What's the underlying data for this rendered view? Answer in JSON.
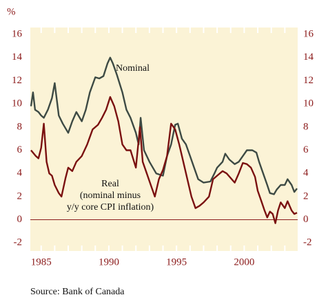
{
  "chart_data": {
    "type": "line",
    "y_unit": "%",
    "source": "Source: Bank of Canada",
    "annotations": [
      "Nominal",
      "Real",
      "(nominal minus",
      "y/y core CPI inflation)"
    ],
    "xlim": [
      1984.2,
      2003.95
    ],
    "xticks": [
      1985,
      1990,
      1995,
      2000
    ],
    "xticks_minor": [
      1985,
      1986,
      1987,
      1988,
      1989,
      1990,
      1991,
      1992,
      1993,
      1994,
      1995,
      1996,
      1997,
      1998,
      1999,
      2000,
      2001,
      2002,
      2003
    ],
    "ylim": [
      -2.7,
      16.6
    ],
    "yticks": [
      -2,
      0,
      2,
      4,
      6,
      8,
      10,
      12,
      14,
      16
    ],
    "zero_line": true,
    "background": "#fbf3d6",
    "series": [
      {
        "name": "Nominal",
        "color": "#3d4a44",
        "x": [
          1984.25,
          1984.4,
          1984.55,
          1984.8,
          1985,
          1985.2,
          1985.5,
          1985.8,
          1986,
          1986.3,
          1986.6,
          1987,
          1987.3,
          1987.6,
          1988,
          1988.3,
          1988.6,
          1989,
          1989.3,
          1989.6,
          1989.9,
          1990.1,
          1990.3,
          1990.6,
          1991,
          1991.3,
          1991.6,
          1992,
          1992.2,
          1992.35,
          1992.6,
          1993,
          1993.5,
          1994,
          1994.3,
          1994.6,
          1994.9,
          1995.1,
          1995.4,
          1995.7,
          1996,
          1996.3,
          1996.6,
          1997,
          1997.5,
          1997.8,
          1998,
          1998.4,
          1998.6,
          1998.9,
          1999.3,
          1999.6,
          1999.9,
          2000.2,
          2000.6,
          2000.9,
          2001.1,
          2001.4,
          2001.7,
          2001.9,
          2002.2,
          2002.4,
          2002.7,
          2003,
          2003.2,
          2003.5,
          2003.7,
          2003.9
        ],
        "values": [
          9.8,
          11,
          9.5,
          9.3,
          9,
          8.8,
          9.5,
          10.5,
          11.8,
          9,
          8.3,
          7.5,
          8.5,
          9.3,
          8.5,
          9.5,
          11,
          12.3,
          12.2,
          12.4,
          13.5,
          14,
          13.5,
          12.5,
          11,
          9.5,
          8.8,
          7.5,
          6.5,
          8.8,
          6,
          5,
          4,
          3.8,
          5.5,
          6.5,
          8.2,
          8.3,
          7,
          6.5,
          5.5,
          4.5,
          3.5,
          3.2,
          3.3,
          4,
          4.5,
          5,
          5.7,
          5.2,
          4.8,
          5,
          5.5,
          6,
          6,
          5.8,
          5,
          4,
          3,
          2.3,
          2.2,
          2.6,
          3,
          3,
          3.5,
          3,
          2.4,
          2.7
        ]
      },
      {
        "name": "Real",
        "color": "#7a1010",
        "x": [
          1984.25,
          1984.6,
          1984.8,
          1985,
          1985.2,
          1985.4,
          1985.6,
          1985.8,
          1986,
          1986.3,
          1986.5,
          1986.8,
          1987,
          1987.3,
          1987.6,
          1988,
          1988.4,
          1988.8,
          1989.2,
          1989.5,
          1989.8,
          1990.1,
          1990.4,
          1990.7,
          1991,
          1991.3,
          1991.6,
          1992,
          1992.3,
          1992.5,
          1992.8,
          1993.1,
          1993.4,
          1993.7,
          1994,
          1994.3,
          1994.6,
          1994.9,
          1995.2,
          1995.5,
          1995.8,
          1996.1,
          1996.4,
          1996.7,
          1997,
          1997.4,
          1997.7,
          1998,
          1998.4,
          1998.7,
          1999,
          1999.3,
          1999.6,
          1999.9,
          2000.2,
          2000.5,
          2000.8,
          2001,
          2001.3,
          2001.5,
          2001.7,
          2001.9,
          2002.1,
          2002.3,
          2002.5,
          2002.7,
          2003,
          2003.2,
          2003.5,
          2003.7,
          2003.9
        ],
        "values": [
          6,
          5.5,
          5.3,
          6.2,
          8.3,
          5,
          4,
          3.8,
          3,
          2.3,
          2,
          3.6,
          4.5,
          4.2,
          5,
          5.5,
          6.5,
          7.8,
          8.2,
          8.8,
          9.5,
          10.6,
          9.8,
          8.5,
          6.5,
          6,
          6,
          4.5,
          8,
          5,
          4,
          3,
          2,
          3.5,
          4.3,
          5.5,
          8.3,
          7.8,
          6.5,
          5,
          3.5,
          2,
          1,
          1.2,
          1.5,
          2,
          3.5,
          3.8,
          4.2,
          4,
          3.6,
          3.2,
          4,
          4.9,
          4.8,
          4.5,
          3.7,
          2.5,
          1.5,
          0.8,
          0.2,
          0.7,
          0.5,
          -0.3,
          0.8,
          1.5,
          1,
          1.6,
          0.8,
          0.5,
          0.6
        ]
      }
    ]
  }
}
